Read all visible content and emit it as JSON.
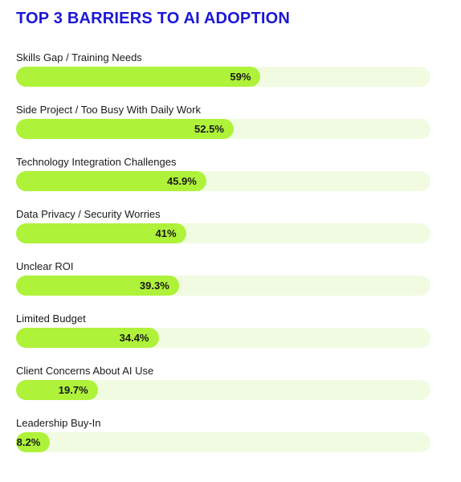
{
  "chart_data": {
    "type": "bar",
    "orientation": "horizontal",
    "title": "TOP 3 BARRIERS TO AI ADOPTION",
    "xlim": [
      0,
      100
    ],
    "unit": "%",
    "colors": {
      "title": "#1c17d6",
      "bar_fill": "#aef23a",
      "bar_track": "#f1fbe2"
    },
    "categories": [
      "Skills Gap / Training Needs",
      "Side Project / Too Busy With Daily Work",
      "Technology Integration Challenges",
      "Data Privacy / Security Worries",
      "Unclear ROI",
      "Limited Budget",
      "Client Concerns About AI Use",
      "Leadership Buy-In"
    ],
    "values": [
      59,
      52.5,
      45.9,
      41,
      39.3,
      34.4,
      19.7,
      8.2
    ],
    "value_labels": [
      "59%",
      "52.5%",
      "45.9%",
      "41%",
      "39.3%",
      "34.4%",
      "19.7%",
      "8.2%"
    ]
  }
}
